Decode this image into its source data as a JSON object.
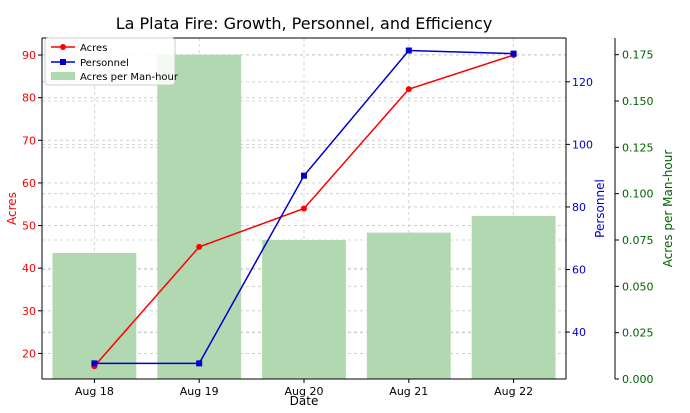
{
  "colors": {
    "acres": "#ff0000",
    "personnel": "#0000cc",
    "efficiency": "#006400",
    "bars": "#b2d8b2",
    "grid": "#cccccc",
    "axis": "#000000"
  },
  "chart_data": {
    "type": "bar",
    "title": "La Plata Fire: Growth, Personnel, and Efficiency",
    "xlabel": "Date",
    "categories": [
      "Aug 18",
      "Aug 19",
      "Aug 20",
      "Aug 21",
      "Aug 22"
    ],
    "series": [
      {
        "name": "Acres",
        "type": "line",
        "axis": "left",
        "values": [
          17,
          45,
          54,
          82,
          90
        ]
      },
      {
        "name": "Personnel",
        "type": "line",
        "axis": "right",
        "values": [
          30,
          30,
          90,
          130,
          129
        ]
      },
      {
        "name": "Acres per Man-hour",
        "type": "bar",
        "axis": "far-right",
        "values": [
          0.068,
          0.175,
          0.075,
          0.079,
          0.088
        ]
      }
    ],
    "axes": {
      "left": {
        "label": "Acres",
        "range": [
          14,
          94
        ],
        "ticks": [
          20,
          30,
          40,
          50,
          60,
          70,
          80,
          90
        ],
        "tick_labels": [
          "20",
          "30",
          "40",
          "50",
          "60",
          "70",
          "80",
          "90"
        ]
      },
      "right": {
        "label": "Personnel",
        "range": [
          25,
          134
        ],
        "ticks": [
          40,
          60,
          80,
          100,
          120
        ],
        "tick_labels": [
          "40",
          "60",
          "80",
          "100",
          "120"
        ]
      },
      "far_right": {
        "label": "Acres per Man-hour",
        "range": [
          0,
          0.184
        ],
        "ticks": [
          0,
          0.025,
          0.05,
          0.075,
          0.1,
          0.125,
          0.15,
          0.175
        ],
        "tick_labels": [
          "0.000",
          "0.025",
          "0.050",
          "0.075",
          "0.100",
          "0.125",
          "0.150",
          "0.175"
        ]
      }
    },
    "grid": true,
    "legend_placement": "top-left"
  }
}
